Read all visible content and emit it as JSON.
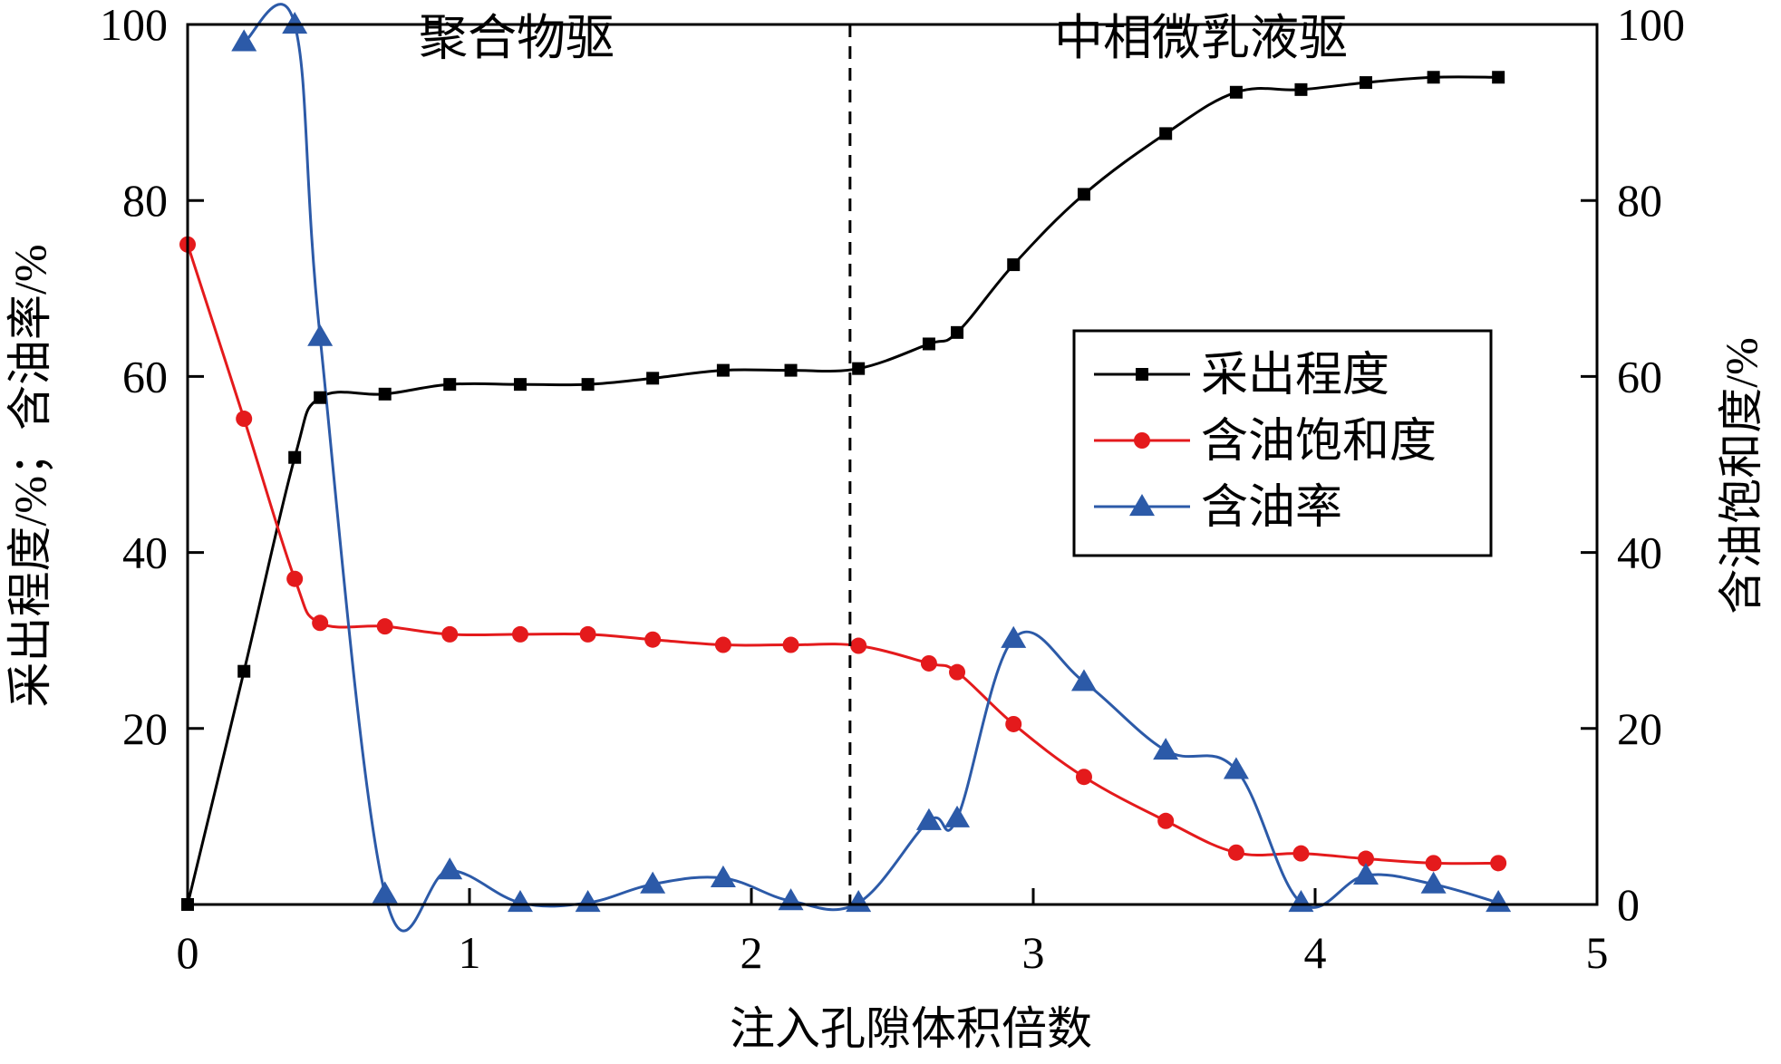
{
  "chart_data": {
    "type": "line",
    "xlabel": "注入孔隙体积倍数",
    "ylabel_left": "采出程度/%；含油率/%",
    "ylabel_right": "含油饱和度/%",
    "xlim": [
      0,
      5
    ],
    "ylim_left": [
      0,
      100
    ],
    "ylim_right": [
      0,
      100
    ],
    "x_ticks": [
      "0",
      "1",
      "2",
      "3",
      "4",
      "5"
    ],
    "y_ticks_left": [
      "20",
      "40",
      "60",
      "80",
      "100"
    ],
    "y_ticks_right": [
      "0",
      "20",
      "40",
      "60",
      "80",
      "100"
    ],
    "grid": false,
    "legend_position": "right-center",
    "annotations": [
      {
        "text": "聚合物驱",
        "region": [
          0,
          2.35
        ]
      },
      {
        "text": "中相微乳液驱",
        "region": [
          2.35,
          5
        ]
      }
    ],
    "divider_x": 2.35,
    "series": [
      {
        "name": "采出程度",
        "axis": "left",
        "marker": "square",
        "color": "#000000",
        "x": [
          0,
          0.2,
          0.38,
          0.47,
          0.7,
          0.93,
          1.18,
          1.42,
          1.65,
          1.9,
          2.14,
          2.38,
          2.63,
          2.73,
          2.93,
          3.18,
          3.47,
          3.72,
          3.95,
          4.18,
          4.42,
          4.65
        ],
        "y": [
          0,
          26.5,
          50.8,
          57.6,
          58,
          59.1,
          59.1,
          59.1,
          59.8,
          60.7,
          60.7,
          60.9,
          63.7,
          65,
          72.7,
          80.7,
          87.6,
          92.3,
          92.6,
          93.4,
          94,
          94
        ]
      },
      {
        "name": "含油饱和度",
        "axis": "right",
        "marker": "circle",
        "color": "#e41a1c",
        "x": [
          0,
          0.2,
          0.38,
          0.47,
          0.7,
          0.93,
          1.18,
          1.42,
          1.65,
          1.9,
          2.14,
          2.38,
          2.63,
          2.73,
          2.93,
          3.18,
          3.47,
          3.72,
          3.95,
          4.18,
          4.42,
          4.65
        ],
        "y": [
          75,
          55.2,
          37,
          32,
          31.6,
          30.7,
          30.7,
          30.7,
          30.1,
          29.5,
          29.5,
          29.4,
          27.4,
          26.4,
          20.5,
          14.5,
          9.5,
          5.9,
          5.8,
          5.2,
          4.7,
          4.7
        ]
      },
      {
        "name": "含油率",
        "axis": "left",
        "marker": "triangle",
        "color": "#2c5aa8",
        "x": [
          0.2,
          0.38,
          0.47,
          0.7,
          0.93,
          1.18,
          1.42,
          1.65,
          1.9,
          2.14,
          2.38,
          2.63,
          2.73,
          2.93,
          3.18,
          3.47,
          3.72,
          3.95,
          4.18,
          4.42,
          4.65
        ],
        "y": [
          98,
          100,
          64.5,
          1.2,
          3.9,
          0.2,
          0.2,
          2.3,
          3,
          0.4,
          0.2,
          9.5,
          9.8,
          30.2,
          25.3,
          17.5,
          15.3,
          0.2,
          3.3,
          2.3,
          0.2
        ]
      }
    ]
  }
}
